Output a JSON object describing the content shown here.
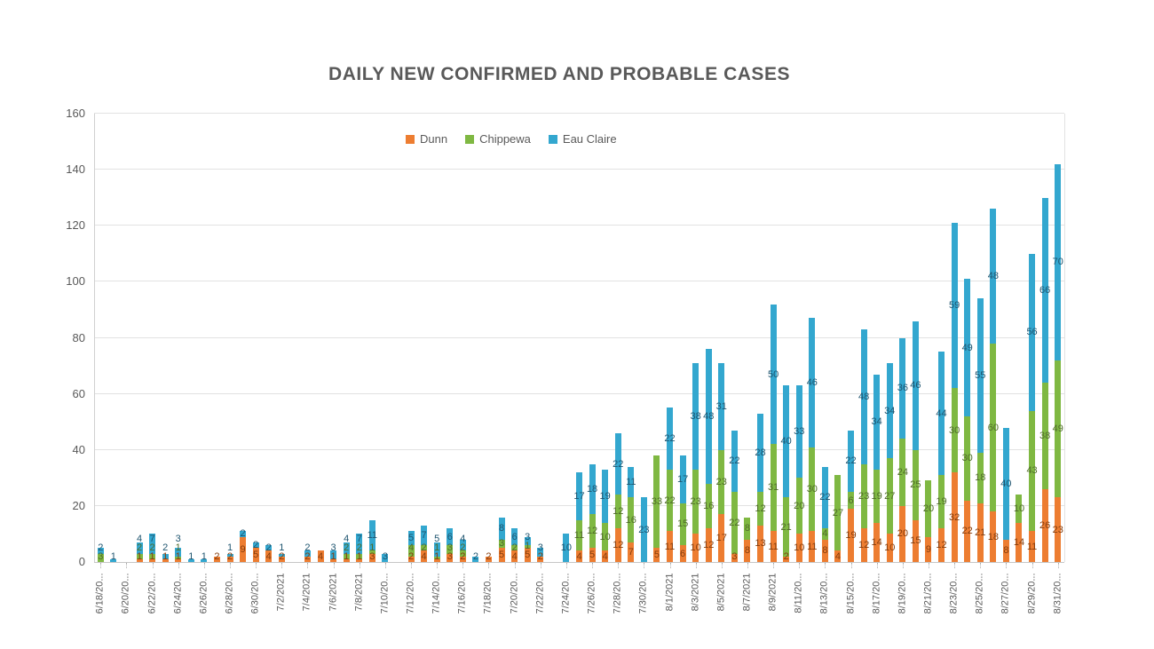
{
  "title": "DAILY NEW CONFIRMED AND PROBABLE CASES",
  "legend": [
    {
      "label": "Dunn",
      "color": "#ED7D31"
    },
    {
      "label": "Chippewa",
      "color": "#7FB842"
    },
    {
      "label": "Eau Claire",
      "color": "#33A7CF"
    }
  ],
  "colors": {
    "dunn_fill": "#ED7D31",
    "dunn_text": "#843C0C",
    "chippewa_fill": "#7FB842",
    "chippewa_text": "#4F6B2A",
    "eau_claire_fill": "#33A7CF",
    "eau_claire_text": "#1E546F",
    "grid": "#e2e2e2",
    "axis_text": "#595959"
  },
  "chart_data": {
    "type": "bar",
    "stacked": true,
    "title": "DAILY NEW CONFIRMED AND PROBABLE CASES",
    "xlabel": "",
    "ylabel": "",
    "ylim": [
      0,
      160
    ],
    "y_ticks": [
      0,
      20,
      40,
      60,
      80,
      100,
      120,
      140,
      160
    ],
    "grid": true,
    "legend_position": "top-center",
    "data_labels": true,
    "categories": [
      "6/18/2021",
      "6/19/2021",
      "6/20/2021",
      "6/21/2021",
      "6/22/2021",
      "6/23/2021",
      "6/24/2021",
      "6/25/2021",
      "6/26/2021",
      "6/27/2021",
      "6/28/2021",
      "6/29/2021",
      "6/30/2021",
      "7/1/2021",
      "7/2/2021",
      "7/3/2021",
      "7/4/2021",
      "7/5/2021",
      "7/6/2021",
      "7/7/2021",
      "7/8/2021",
      "7/9/2021",
      "7/10/2021",
      "7/11/2021",
      "7/12/2021",
      "7/13/2021",
      "7/14/2021",
      "7/15/2021",
      "7/16/2021",
      "7/17/2021",
      "7/18/2021",
      "7/19/2021",
      "7/20/2021",
      "7/21/2021",
      "7/22/2021",
      "7/23/2021",
      "7/24/2021",
      "7/25/2021",
      "7/26/2021",
      "7/27/2021",
      "7/28/2021",
      "7/29/2021",
      "7/30/2021",
      "7/31/2021",
      "8/1/2021",
      "8/2/2021",
      "8/3/2021",
      "8/4/2021",
      "8/5/2021",
      "8/6/2021",
      "8/7/2021",
      "8/8/2021",
      "8/9/2021",
      "8/10/2021",
      "8/11/2021",
      "8/12/2021",
      "8/13/2021",
      "8/14/2021",
      "8/15/2021",
      "8/16/2021",
      "8/17/2021",
      "8/18/2021",
      "8/19/2021",
      "8/20/2021",
      "8/21/2021",
      "8/22/2021",
      "8/23/2021",
      "8/24/2021",
      "8/25/2021",
      "8/26/2021",
      "8/27/2021",
      "8/28/2021",
      "8/29/2021",
      "8/30/2021",
      "8/31/2021"
    ],
    "x_tick_labels": [
      "6/18/20...",
      "6/20/20...",
      "6/22/20...",
      "6/24/20...",
      "6/26/20...",
      "6/28/20...",
      "6/30/20...",
      "7/2/2021",
      "7/4/2021",
      "7/6/2021",
      "7/8/2021",
      "7/10/20...",
      "7/12/20...",
      "7/14/20...",
      "7/16/20...",
      "7/18/20...",
      "7/20/20...",
      "7/22/20...",
      "7/24/20...",
      "7/26/20...",
      "7/28/20...",
      "7/30/20...",
      "8/1/2021",
      "8/3/2021",
      "8/5/2021",
      "8/7/2021",
      "8/9/2021",
      "8/11/20...",
      "8/13/20...",
      "8/15/20...",
      "8/17/20...",
      "8/19/20...",
      "8/21/20...",
      "8/23/20...",
      "8/25/20...",
      "8/27/20...",
      "8/29/20...",
      "8/31/20..."
    ],
    "series": [
      {
        "name": "Dunn",
        "values": [
          0,
          0,
          0,
          1,
          1,
          1,
          1,
          0,
          0,
          2,
          2,
          9,
          5,
          4,
          2,
          0,
          2,
          4,
          1,
          1,
          1,
          3,
          0,
          0,
          2,
          4,
          1,
          3,
          2,
          0,
          2,
          5,
          4,
          5,
          2,
          0,
          0,
          4,
          5,
          4,
          12,
          7,
          0,
          5,
          11,
          6,
          10,
          12,
          17,
          3,
          8,
          13,
          11,
          2,
          10,
          11,
          8,
          4,
          19,
          12,
          14,
          10,
          20,
          15,
          9,
          12,
          32,
          22,
          21,
          18,
          8,
          14,
          11,
          26,
          23
        ]
      },
      {
        "name": "Chippewa",
        "values": [
          3,
          0,
          0,
          2,
          2,
          0,
          1,
          0,
          0,
          0,
          0,
          0,
          0,
          0,
          0,
          0,
          0,
          0,
          0,
          2,
          2,
          1,
          0,
          0,
          4,
          2,
          1,
          3,
          2,
          0,
          0,
          3,
          2,
          1,
          0,
          0,
          0,
          11,
          12,
          10,
          12,
          16,
          0,
          33,
          22,
          15,
          23,
          16,
          23,
          22,
          8,
          12,
          31,
          21,
          20,
          30,
          4,
          27,
          6,
          23,
          19,
          27,
          24,
          25,
          20,
          19,
          30,
          30,
          18,
          60,
          0,
          10,
          43,
          38,
          49
        ]
      },
      {
        "name": "Eau Claire",
        "values": [
          2,
          1,
          0,
          4,
          7,
          2,
          3,
          1,
          1,
          0,
          1,
          2,
          2,
          2,
          1,
          0,
          2,
          0,
          3,
          4,
          7,
          11,
          3,
          0,
          5,
          7,
          5,
          6,
          4,
          2,
          0,
          8,
          6,
          3,
          3,
          0,
          10,
          17,
          18,
          19,
          22,
          11,
          23,
          0,
          22,
          17,
          38,
          48,
          31,
          22,
          0,
          28,
          50,
          40,
          33,
          46,
          22,
          0,
          22,
          48,
          34,
          34,
          36,
          46,
          0,
          44,
          59,
          49,
          55,
          48,
          40,
          0,
          56,
          66,
          70
        ]
      }
    ]
  }
}
